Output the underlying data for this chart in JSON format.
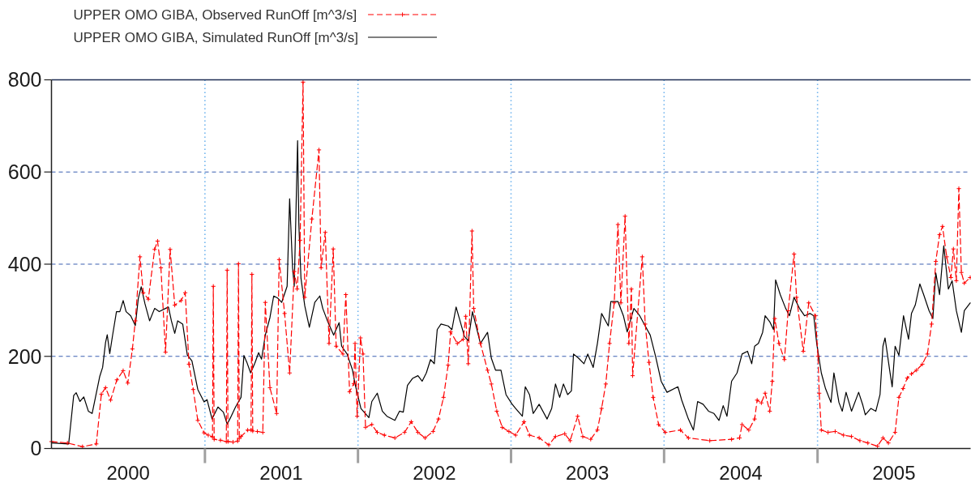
{
  "chart_data": {
    "type": "line",
    "legend": "top left",
    "grid": true,
    "xlim": [
      "2000-01-01",
      "2006-01-01"
    ],
    "ylim": [
      0,
      800
    ],
    "xticks": [
      {
        "value": "2000-07-02",
        "label": "2000"
      },
      {
        "value": "2001-01-01",
        "label": null
      },
      {
        "value": "2001-07-02",
        "label": "2001"
      },
      {
        "value": "2002-01-01",
        "label": null
      },
      {
        "value": "2002-07-02",
        "label": "2002"
      },
      {
        "value": "2003-01-01",
        "label": null
      },
      {
        "value": "2003-07-02",
        "label": "2003"
      },
      {
        "value": "2004-01-01",
        "label": null
      },
      {
        "value": "2004-07-02",
        "label": "2004"
      },
      {
        "value": "2005-01-01",
        "label": null
      },
      {
        "value": "2005-07-02",
        "label": "2005"
      }
    ],
    "yticks": [
      0,
      200,
      400,
      600,
      800
    ],
    "series": [
      {
        "name": "UPPER OMO GIBA, Observed RunOff [m^3/s]",
        "color": "#ff0000",
        "line_style": "dashed",
        "marker": "cross",
        "x": [
          "2000-01-01",
          "2000-02-08",
          "2000-03-15",
          "2000-04-17",
          "2000-04-29",
          "2000-05-09",
          "2000-05-21",
          "2000-06-05",
          "2000-06-20",
          "2000-07-01",
          "2000-07-12",
          "2000-07-19",
          "2000-07-30",
          "2000-08-07",
          "2000-08-19",
          "2000-09-03",
          "2000-09-10",
          "2000-09-18",
          "2000-09-29",
          "2000-10-10",
          "2000-10-21",
          "2000-11-05",
          "2000-11-15",
          "2000-11-24",
          "2000-12-04",
          "2000-12-15",
          "2000-12-30",
          "2001-01-09",
          "2001-01-19",
          "2001-01-21",
          "2001-01-23",
          "2001-02-07",
          "2001-02-21",
          "2001-02-23",
          "2001-02-25",
          "2001-03-09",
          "2001-03-20",
          "2001-03-22",
          "2001-03-24",
          "2001-03-28",
          "2001-04-13",
          "2001-04-21",
          "2001-04-23",
          "2001-04-25",
          "2001-05-06",
          "2001-05-19",
          "2001-05-25",
          "2001-06-05",
          "2001-06-21",
          "2001-06-27",
          "2001-07-10",
          "2001-07-22",
          "2001-08-02",
          "2001-08-09",
          "2001-08-16",
          "2001-08-23",
          "2001-08-27",
          "2001-09-13",
          "2001-09-30",
          "2001-10-05",
          "2001-10-15",
          "2001-10-24",
          "2001-11-03",
          "2001-11-10",
          "2001-11-26",
          "2001-12-03",
          "2001-12-12",
          "2001-12-22",
          "2001-12-25",
          "2001-12-30",
          "2002-01-07",
          "2002-01-13",
          "2002-01-19",
          "2002-02-03",
          "2002-02-16",
          "2002-03-05",
          "2002-03-30",
          "2002-04-22",
          "2002-05-08",
          "2002-05-24",
          "2002-06-10",
          "2002-06-29",
          "2002-07-12",
          "2002-07-24",
          "2002-08-04",
          "2002-08-10",
          "2002-08-26",
          "2002-09-09",
          "2002-09-15",
          "2002-09-21",
          "2002-09-30",
          "2002-10-04",
          "2002-10-20",
          "2002-11-06",
          "2002-11-15",
          "2002-11-28",
          "2002-12-11",
          "2002-12-27",
          "2003-01-12",
          "2003-02-01",
          "2003-02-14",
          "2003-03-09",
          "2003-04-01",
          "2003-04-17",
          "2003-05-09",
          "2003-05-22",
          "2003-06-09",
          "2003-06-21",
          "2003-07-10",
          "2003-07-26",
          "2003-08-05",
          "2003-08-15",
          "2003-08-24",
          "2003-09-04",
          "2003-09-13",
          "2003-09-20",
          "2003-09-30",
          "2003-10-09",
          "2003-10-15",
          "2003-10-18",
          "2003-11-10",
          "2003-11-17",
          "2003-11-26",
          "2003-12-06",
          "2003-12-19",
          "2004-01-04",
          "2004-02-09",
          "2004-02-28",
          "2004-04-19",
          "2004-06-10",
          "2004-06-29",
          "2004-07-05",
          "2004-07-21",
          "2004-08-04",
          "2004-08-10",
          "2004-08-20",
          "2004-08-29",
          "2004-09-09",
          "2004-09-15",
          "2004-09-21",
          "2004-10-01",
          "2004-10-14",
          "2004-10-23",
          "2004-11-06",
          "2004-11-12",
          "2004-11-28",
          "2004-12-11",
          "2004-12-27",
          "2005-01-02",
          "2005-01-05",
          "2005-01-10",
          "2005-01-26",
          "2005-02-12",
          "2005-03-04",
          "2005-03-23",
          "2005-04-12",
          "2005-05-01",
          "2005-05-24",
          "2005-06-06",
          "2005-06-19",
          "2005-07-05",
          "2005-07-14",
          "2005-07-24",
          "2005-08-03",
          "2005-08-13",
          "2005-08-25",
          "2005-09-08",
          "2005-09-20",
          "2005-09-30",
          "2005-10-10",
          "2005-10-19",
          "2005-10-26",
          "2005-11-05",
          "2005-11-15",
          "2005-11-21",
          "2005-11-28",
          "2005-12-04",
          "2005-12-10",
          "2005-12-17",
          "2005-12-31"
        ],
        "values": [
          15,
          12,
          4,
          10,
          118,
          132,
          105,
          149,
          169,
          142,
          216,
          277,
          416,
          338,
          324,
          432,
          450,
          392,
          209,
          432,
          311,
          321,
          338,
          183,
          128,
          61,
          34,
          29,
          25,
          352,
          20,
          18,
          15,
          387,
          15,
          14,
          16,
          401,
          22,
          26,
          40,
          40,
          378,
          38,
          37,
          35,
          317,
          132,
          76,
          410,
          293,
          164,
          384,
          346,
          452,
          795,
          328,
          498,
          648,
          392,
          469,
          228,
          433,
          222,
          205,
          334,
          123,
          141,
          228,
          70,
          240,
          205,
          46,
          52,
          35,
          29,
          23,
          35,
          58,
          35,
          23,
          37,
          64,
          111,
          181,
          253,
          228,
          237,
          287,
          184,
          472,
          304,
          228,
          170,
          140,
          81,
          46,
          37,
          29,
          58,
          29,
          23,
          8,
          26,
          32,
          17,
          70,
          26,
          20,
          40,
          87,
          140,
          228,
          316,
          486,
          316,
          504,
          228,
          346,
          158,
          416,
          270,
          187,
          111,
          52,
          35,
          40,
          23,
          17,
          20,
          23,
          52,
          40,
          64,
          105,
          99,
          120,
          81,
          146,
          282,
          228,
          193,
          299,
          422,
          328,
          211,
          316,
          288,
          200,
          120,
          40,
          35,
          37,
          29,
          26,
          17,
          12,
          5,
          23,
          12,
          35,
          111,
          130,
          153,
          162,
          170,
          183,
          205,
          270,
          406,
          464,
          482,
          416,
          371,
          433,
          364,
          564,
          382,
          359,
          371
        ]
      },
      {
        "name": "UPPER OMO GIBA, Simulated RunOff [m^3/s]",
        "color": "#000000",
        "line_style": "solid",
        "x": [
          "2000-01-01",
          "2000-02-11",
          "2000-02-23",
          "2000-02-29",
          "2000-03-09",
          "2000-03-18",
          "2000-03-29",
          "2000-04-07",
          "2000-04-14",
          "2000-04-25",
          "2000-05-02",
          "2000-05-09",
          "2000-05-13",
          "2000-05-19",
          "2000-05-26",
          "2000-06-04",
          "2000-06-12",
          "2000-06-20",
          "2000-06-27",
          "2000-07-08",
          "2000-07-19",
          "2000-07-26",
          "2000-08-02",
          "2000-08-11",
          "2000-08-22",
          "2000-09-03",
          "2000-09-14",
          "2000-09-29",
          "2000-10-06",
          "2000-10-13",
          "2000-10-21",
          "2000-10-28",
          "2000-11-09",
          "2000-11-20",
          "2000-12-01",
          "2000-12-15",
          "2000-12-30",
          "2001-01-06",
          "2001-01-18",
          "2001-02-01",
          "2001-02-14",
          "2001-02-23",
          "2001-03-03",
          "2001-03-15",
          "2001-03-28",
          "2001-04-04",
          "2001-04-11",
          "2001-04-20",
          "2001-04-30",
          "2001-05-09",
          "2001-05-16",
          "2001-05-25",
          "2001-06-05",
          "2001-06-14",
          "2001-06-24",
          "2001-07-03",
          "2001-07-16",
          "2001-07-22",
          "2001-07-29",
          "2001-08-02",
          "2001-08-10",
          "2001-08-13",
          "2001-08-18",
          "2001-08-27",
          "2001-09-07",
          "2001-09-20",
          "2001-10-02",
          "2001-10-09",
          "2001-10-21",
          "2001-11-04",
          "2001-11-17",
          "2001-11-23",
          "2001-12-06",
          "2001-12-19",
          "2001-12-25",
          "2002-01-08",
          "2002-01-27",
          "2002-02-03",
          "2002-02-16",
          "2002-02-28",
          "2002-03-11",
          "2002-03-30",
          "2002-04-10",
          "2002-04-19",
          "2002-04-29",
          "2002-05-11",
          "2002-05-24",
          "2002-06-03",
          "2002-06-13",
          "2002-06-23",
          "2002-07-02",
          "2002-07-09",
          "2002-07-18",
          "2002-08-04",
          "2002-08-13",
          "2002-08-23",
          "2002-09-12",
          "2002-09-21",
          "2002-10-01",
          "2002-10-20",
          "2002-11-06",
          "2002-11-15",
          "2002-11-25",
          "2002-12-08",
          "2002-12-20",
          "2003-01-03",
          "2003-01-12",
          "2003-01-28",
          "2003-02-04",
          "2003-02-14",
          "2003-02-23",
          "2003-03-09",
          "2003-03-28",
          "2003-04-08",
          "2003-04-17",
          "2003-04-27",
          "2003-05-06",
          "2003-05-16",
          "2003-05-25",
          "2003-05-30",
          "2003-06-11",
          "2003-06-24",
          "2003-07-03",
          "2003-07-16",
          "2003-07-26",
          "2003-08-05",
          "2003-08-21",
          "2003-08-27",
          "2003-09-13",
          "2003-09-26",
          "2003-10-05",
          "2003-10-21",
          "2003-11-04",
          "2003-11-17",
          "2003-11-29",
          "2003-12-12",
          "2003-12-25",
          "2004-01-08",
          "2004-02-03",
          "2004-02-12",
          "2004-02-28",
          "2004-03-11",
          "2004-03-21",
          "2004-04-03",
          "2004-04-16",
          "2004-04-29",
          "2004-05-11",
          "2004-05-21",
          "2004-05-30",
          "2004-06-10",
          "2004-06-23",
          "2004-07-05",
          "2004-07-18",
          "2004-07-28",
          "2004-08-04",
          "2004-08-13",
          "2004-08-23",
          "2004-08-29",
          "2004-09-09",
          "2004-09-18",
          "2004-09-23",
          "2004-10-04",
          "2004-10-17",
          "2004-10-26",
          "2004-11-06",
          "2004-11-19",
          "2004-12-01",
          "2004-12-14",
          "2004-12-23",
          "2004-12-30",
          "2005-01-10",
          "2005-01-20",
          "2005-02-02",
          "2005-02-09",
          "2005-02-21",
          "2005-03-01",
          "2005-03-10",
          "2005-03-23",
          "2005-04-09",
          "2005-04-19",
          "2005-04-25",
          "2005-05-08",
          "2005-05-20",
          "2005-05-30",
          "2005-06-06",
          "2005-06-11",
          "2005-06-22",
          "2005-06-28",
          "2005-07-05",
          "2005-07-14",
          "2005-07-25",
          "2005-08-06",
          "2005-08-13",
          "2005-08-22",
          "2005-09-02",
          "2005-09-11",
          "2005-09-24",
          "2005-10-03",
          "2005-10-10",
          "2005-10-19",
          "2005-10-29",
          "2005-11-09",
          "2005-11-18",
          "2005-11-28",
          "2005-12-10",
          "2005-12-17",
          "2005-12-31"
        ],
        "values": [
          12,
          10,
          115,
          121,
          102,
          112,
          81,
          76,
          107,
          156,
          176,
          230,
          247,
          206,
          247,
          297,
          297,
          321,
          297,
          288,
          267,
          325,
          351,
          314,
          277,
          304,
          297,
          304,
          307,
          277,
          250,
          277,
          270,
          203,
          190,
          128,
          101,
          106,
          64,
          90,
          79,
          53,
          67,
          90,
          111,
          202,
          187,
          164,
          185,
          208,
          194,
          246,
          284,
          331,
          326,
          317,
          352,
          542,
          392,
          352,
          668,
          486,
          370,
          310,
          263,
          317,
          331,
          304,
          275,
          246,
          273,
          222,
          205,
          170,
          140,
          87,
          67,
          102,
          120,
          81,
          70,
          61,
          81,
          79,
          137,
          152,
          158,
          146,
          164,
          193,
          184,
          258,
          270,
          266,
          258,
          307,
          243,
          234,
          297,
          228,
          252,
          196,
          170,
          170,
          117,
          97,
          87,
          70,
          134,
          117,
          76,
          96,
          64,
          87,
          140,
          111,
          140,
          117,
          125,
          205,
          196,
          184,
          205,
          176,
          228,
          293,
          266,
          319,
          319,
          288,
          253,
          304,
          288,
          266,
          246,
          199,
          146,
          122,
          134,
          105,
          64,
          40,
          102,
          96,
          81,
          76,
          61,
          93,
          70,
          146,
          164,
          205,
          211,
          184,
          222,
          228,
          252,
          288,
          275,
          258,
          366,
          334,
          304,
          288,
          328,
          304,
          288,
          293,
          288,
          228,
          164,
          130,
          100,
          164,
          100,
          81,
          122,
          81,
          122,
          94,
          73,
          87,
          81,
          117,
          222,
          240,
          170,
          134,
          222,
          202,
          288,
          237,
          293,
          311,
          357,
          334,
          299,
          282,
          381,
          334,
          440,
          346,
          364,
          299,
          252,
          299,
          316
        ]
      }
    ]
  }
}
